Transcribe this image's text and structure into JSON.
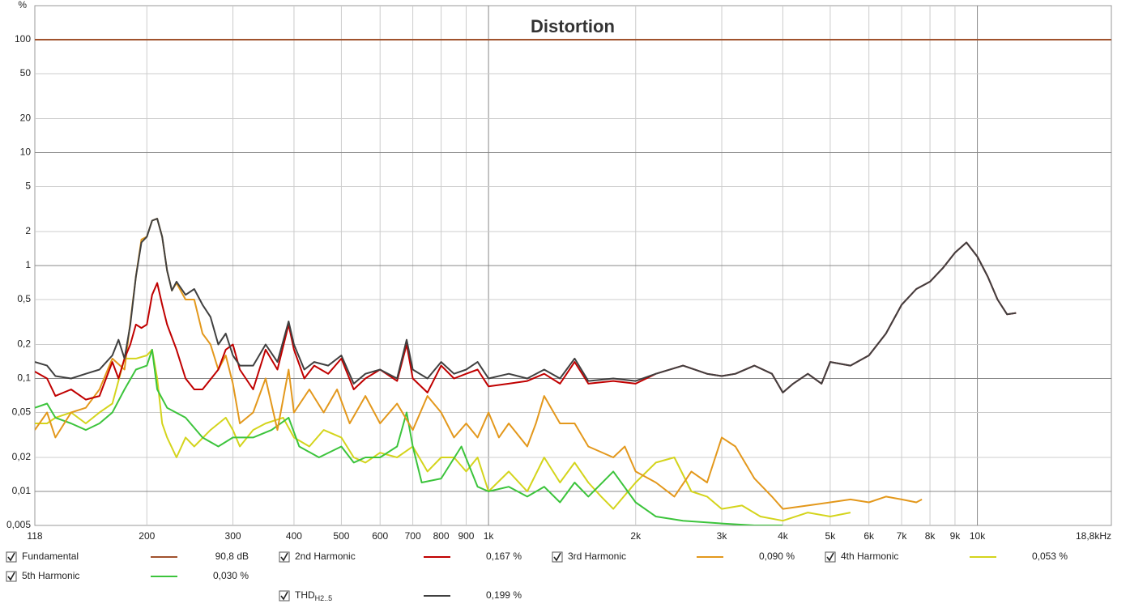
{
  "chart_data": {
    "type": "line",
    "title": "Distortion",
    "y_unit": "%",
    "log_x": true,
    "log_y": true,
    "grid": true,
    "xlim": [
      118,
      18800
    ],
    "xticks": [
      118,
      200,
      300,
      400,
      500,
      600,
      700,
      800,
      900,
      {
        "value": 1000,
        "label": "1k"
      },
      {
        "value": 2000,
        "label": "2k"
      },
      {
        "value": 3000,
        "label": "3k"
      },
      {
        "value": 4000,
        "label": "4k"
      },
      {
        "value": 5000,
        "label": "5k"
      },
      {
        "value": 6000,
        "label": "6k"
      },
      {
        "value": 7000,
        "label": "7k"
      },
      {
        "value": 8000,
        "label": "8k"
      },
      {
        "value": 9000,
        "label": "9k"
      },
      {
        "value": 10000,
        "label": "10k"
      },
      {
        "value": 18800,
        "label": "18,8kHz"
      }
    ],
    "ylim": [
      0.005,
      200
    ],
    "yticks": [
      100,
      50,
      20,
      10,
      5,
      2,
      1,
      {
        "value": 0.5,
        "label": "0,5"
      },
      {
        "value": 0.2,
        "label": "0,2"
      },
      {
        "value": 0.1,
        "label": "0,1"
      },
      {
        "value": 0.05,
        "label": "0,05"
      },
      {
        "value": 0.02,
        "label": "0,02"
      },
      {
        "value": 0.01,
        "label": "0,01"
      },
      {
        "value": 0.005,
        "label": "0,005"
      }
    ],
    "series": [
      {
        "name": "Fundamental",
        "color": "#a0522d",
        "readout": "90,8 dB",
        "x": [
          118,
          18800
        ],
        "values": [
          100,
          100
        ]
      },
      {
        "name": "2nd Harmonic",
        "color": "#c00000",
        "readout": "0,167 %",
        "x": [
          118,
          125,
          130,
          140,
          150,
          160,
          170,
          175,
          180,
          185,
          190,
          195,
          200,
          205,
          210,
          215,
          220,
          230,
          240,
          250,
          260,
          280,
          290,
          300,
          310,
          330,
          350,
          370,
          390,
          400,
          420,
          440,
          470,
          500,
          530,
          560,
          600,
          650,
          680,
          700,
          750,
          800,
          850,
          900,
          950,
          1000,
          1100,
          1200,
          1300,
          1400,
          1500,
          1600,
          1800,
          2000,
          2200,
          2500,
          2800,
          3000,
          3200,
          3500,
          3800,
          4000,
          4200,
          4500,
          4800,
          5000,
          5500,
          6000,
          6500,
          7000,
          7500,
          8000,
          8500,
          9000,
          9500,
          10000,
          10500,
          11000,
          11500,
          12000
        ],
        "values": [
          0.115,
          0.1,
          0.07,
          0.08,
          0.065,
          0.07,
          0.14,
          0.1,
          0.15,
          0.2,
          0.3,
          0.28,
          0.3,
          0.55,
          0.7,
          0.45,
          0.3,
          0.18,
          0.1,
          0.08,
          0.08,
          0.12,
          0.18,
          0.2,
          0.12,
          0.08,
          0.18,
          0.12,
          0.3,
          0.18,
          0.1,
          0.13,
          0.11,
          0.15,
          0.08,
          0.1,
          0.12,
          0.095,
          0.2,
          0.1,
          0.075,
          0.13,
          0.1,
          0.11,
          0.12,
          0.085,
          0.09,
          0.095,
          0.11,
          0.09,
          0.14,
          0.09,
          0.095,
          0.09,
          0.11,
          0.13,
          0.11,
          0.105,
          0.11,
          0.13,
          0.11,
          0.075,
          0.09,
          0.11,
          0.09,
          0.14,
          0.13,
          0.16,
          0.25,
          0.45,
          0.62,
          0.72,
          0.95,
          1.3,
          1.6,
          1.2,
          0.8,
          0.5,
          0.37,
          0.38
        ]
      },
      {
        "name": "3rd Harmonic",
        "color": "#e3981c",
        "readout": "0,090 %",
        "x": [
          118,
          125,
          130,
          140,
          150,
          160,
          170,
          180,
          190,
          195,
          200,
          205,
          210,
          215,
          220,
          225,
          230,
          240,
          250,
          260,
          270,
          280,
          290,
          300,
          310,
          330,
          350,
          370,
          390,
          400,
          430,
          460,
          490,
          520,
          560,
          600,
          650,
          700,
          750,
          800,
          850,
          900,
          950,
          1000,
          1050,
          1100,
          1200,
          1250,
          1300,
          1400,
          1500,
          1600,
          1800,
          1900,
          2000,
          2200,
          2400,
          2600,
          2800,
          3000,
          3200,
          3500,
          3800,
          4000,
          4500,
          5000,
          5500,
          6000,
          6500,
          7000,
          7500,
          7700
        ],
        "values": [
          0.035,
          0.05,
          0.03,
          0.05,
          0.055,
          0.08,
          0.15,
          0.12,
          0.8,
          1.7,
          1.8,
          2.5,
          2.6,
          1.8,
          0.9,
          0.6,
          0.7,
          0.5,
          0.5,
          0.25,
          0.2,
          0.12,
          0.16,
          0.09,
          0.04,
          0.05,
          0.1,
          0.035,
          0.12,
          0.05,
          0.08,
          0.05,
          0.08,
          0.04,
          0.07,
          0.04,
          0.06,
          0.035,
          0.07,
          0.05,
          0.03,
          0.04,
          0.03,
          0.05,
          0.03,
          0.04,
          0.025,
          0.04,
          0.07,
          0.04,
          0.04,
          0.025,
          0.02,
          0.025,
          0.015,
          0.012,
          0.009,
          0.015,
          0.012,
          0.03,
          0.025,
          0.013,
          0.009,
          0.007,
          0.0075,
          0.008,
          0.0085,
          0.008,
          0.009,
          0.0085,
          0.008,
          0.0085
        ]
      },
      {
        "name": "4th Harmonic",
        "color": "#d4d41c",
        "readout": "0,053 %",
        "x": [
          118,
          125,
          130,
          140,
          150,
          160,
          170,
          180,
          190,
          200,
          205,
          210,
          215,
          220,
          230,
          240,
          250,
          270,
          290,
          300,
          310,
          330,
          350,
          380,
          400,
          430,
          460,
          500,
          530,
          560,
          600,
          650,
          700,
          750,
          800,
          850,
          900,
          950,
          1000,
          1100,
          1200,
          1300,
          1400,
          1500,
          1600,
          1700,
          1800,
          2000,
          2200,
          2400,
          2600,
          2800,
          3000,
          3300,
          3600,
          4000,
          4500,
          5000,
          5500
        ],
        "values": [
          0.04,
          0.04,
          0.045,
          0.05,
          0.04,
          0.05,
          0.06,
          0.15,
          0.15,
          0.16,
          0.18,
          0.1,
          0.04,
          0.03,
          0.02,
          0.03,
          0.025,
          0.035,
          0.045,
          0.035,
          0.025,
          0.035,
          0.04,
          0.045,
          0.03,
          0.025,
          0.035,
          0.03,
          0.02,
          0.018,
          0.022,
          0.02,
          0.025,
          0.015,
          0.02,
          0.02,
          0.015,
          0.02,
          0.01,
          0.015,
          0.01,
          0.02,
          0.012,
          0.018,
          0.012,
          0.009,
          0.007,
          0.012,
          0.018,
          0.02,
          0.01,
          0.009,
          0.007,
          0.0075,
          0.006,
          0.0055,
          0.0065,
          0.006,
          0.0065
        ]
      },
      {
        "name": "5th Harmonic",
        "color": "#3cc43c",
        "readout": "0,030 %",
        "x": [
          118,
          125,
          130,
          140,
          150,
          160,
          170,
          180,
          190,
          200,
          205,
          210,
          220,
          240,
          260,
          280,
          300,
          330,
          360,
          390,
          410,
          450,
          500,
          530,
          560,
          600,
          650,
          680,
          700,
          730,
          800,
          880,
          950,
          1000,
          1100,
          1200,
          1300,
          1400,
          1500,
          1600,
          1800,
          2000,
          2200,
          2500,
          3000,
          3500,
          4000
        ],
        "values": [
          0.055,
          0.06,
          0.045,
          0.04,
          0.035,
          0.04,
          0.05,
          0.08,
          0.12,
          0.13,
          0.18,
          0.08,
          0.055,
          0.045,
          0.03,
          0.025,
          0.03,
          0.03,
          0.035,
          0.045,
          0.025,
          0.02,
          0.025,
          0.018,
          0.02,
          0.02,
          0.025,
          0.05,
          0.025,
          0.012,
          0.013,
          0.025,
          0.011,
          0.01,
          0.011,
          0.009,
          0.011,
          0.008,
          0.012,
          0.009,
          0.015,
          0.008,
          0.006,
          0.0055,
          0.0052,
          0.005,
          0.005
        ]
      },
      {
        "name": "THD",
        "name_sub": "H2..5",
        "color": "#404040",
        "readout": "0,199 %",
        "x": [
          118,
          125,
          130,
          140,
          150,
          160,
          170,
          175,
          180,
          185,
          190,
          195,
          200,
          205,
          210,
          215,
          220,
          225,
          230,
          240,
          250,
          260,
          270,
          280,
          290,
          300,
          310,
          330,
          350,
          370,
          390,
          400,
          420,
          440,
          470,
          500,
          530,
          560,
          600,
          650,
          680,
          700,
          750,
          800,
          850,
          900,
          950,
          1000,
          1100,
          1200,
          1300,
          1400,
          1500,
          1600,
          1800,
          2000,
          2200,
          2500,
          2800,
          3000,
          3200,
          3500,
          3800,
          4000,
          4200,
          4500,
          4800,
          5000,
          5500,
          6000,
          6500,
          7000,
          7500,
          8000,
          8500,
          9000,
          9500,
          10000,
          10500,
          11000,
          11500,
          12000
        ],
        "values": [
          0.14,
          0.13,
          0.105,
          0.1,
          0.11,
          0.12,
          0.16,
          0.22,
          0.15,
          0.3,
          0.8,
          1.6,
          1.8,
          2.5,
          2.6,
          1.8,
          0.9,
          0.6,
          0.72,
          0.55,
          0.62,
          0.45,
          0.35,
          0.2,
          0.25,
          0.16,
          0.13,
          0.13,
          0.2,
          0.14,
          0.32,
          0.2,
          0.12,
          0.14,
          0.13,
          0.16,
          0.09,
          0.11,
          0.12,
          0.1,
          0.22,
          0.12,
          0.1,
          0.14,
          0.11,
          0.12,
          0.14,
          0.1,
          0.11,
          0.1,
          0.12,
          0.1,
          0.15,
          0.095,
          0.1,
          0.095,
          0.11,
          0.13,
          0.11,
          0.105,
          0.11,
          0.13,
          0.11,
          0.075,
          0.09,
          0.11,
          0.09,
          0.14,
          0.13,
          0.16,
          0.25,
          0.45,
          0.62,
          0.72,
          0.95,
          1.3,
          1.6,
          1.2,
          0.8,
          0.5,
          0.37,
          0.38
        ]
      }
    ]
  }
}
